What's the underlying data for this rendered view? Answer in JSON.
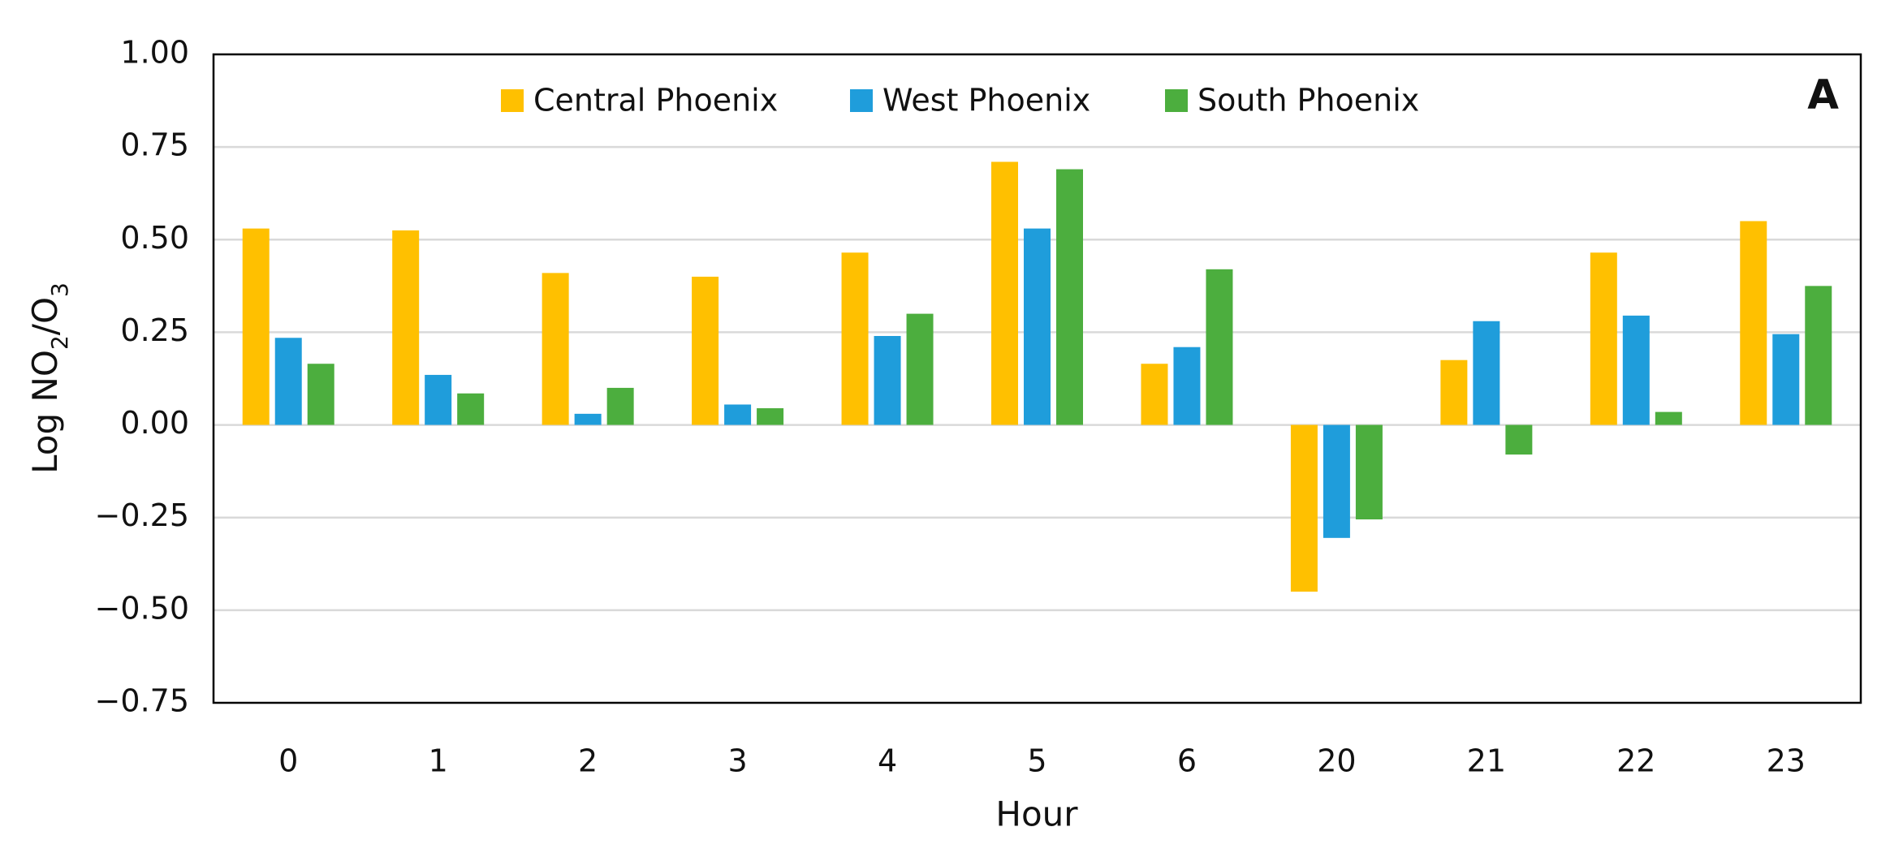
{
  "chart_data": {
    "type": "bar",
    "annotation": "A",
    "x_label": "Hour",
    "y_label": "Log NO2/O3",
    "categories": [
      "0",
      "1",
      "2",
      "3",
      "4",
      "5",
      "6",
      "20",
      "21",
      "22",
      "23"
    ],
    "series": [
      {
        "name": "Central Phoenix",
        "color": "#ffc000",
        "values": [
          0.53,
          0.525,
          0.41,
          0.4,
          0.465,
          0.71,
          0.165,
          -0.45,
          0.175,
          0.465,
          0.55
        ]
      },
      {
        "name": "West Phoenix",
        "color": "#1f9ddb",
        "values": [
          0.235,
          0.135,
          0.03,
          0.055,
          0.24,
          0.53,
          0.21,
          -0.305,
          0.28,
          0.295,
          0.245
        ]
      },
      {
        "name": "South Phoenix",
        "color": "#4cae3e",
        "values": [
          0.165,
          0.085,
          0.1,
          0.045,
          0.3,
          0.69,
          0.42,
          -0.255,
          -0.08,
          0.035,
          0.375
        ]
      }
    ],
    "ylim": [
      -0.75,
      1.0
    ],
    "yticks": [
      {
        "value": -0.75,
        "label": "−0.75"
      },
      {
        "value": -0.5,
        "label": "−0.50"
      },
      {
        "value": -0.25,
        "label": "−0.25"
      },
      {
        "value": 0,
        "label": "0.00"
      },
      {
        "value": 0.25,
        "label": "0.25"
      },
      {
        "value": 0.5,
        "label": "0.50"
      },
      {
        "value": 0.75,
        "label": "0.75"
      },
      {
        "value": 1.0,
        "label": "1.00"
      }
    ],
    "grid": true,
    "legend": "top"
  }
}
